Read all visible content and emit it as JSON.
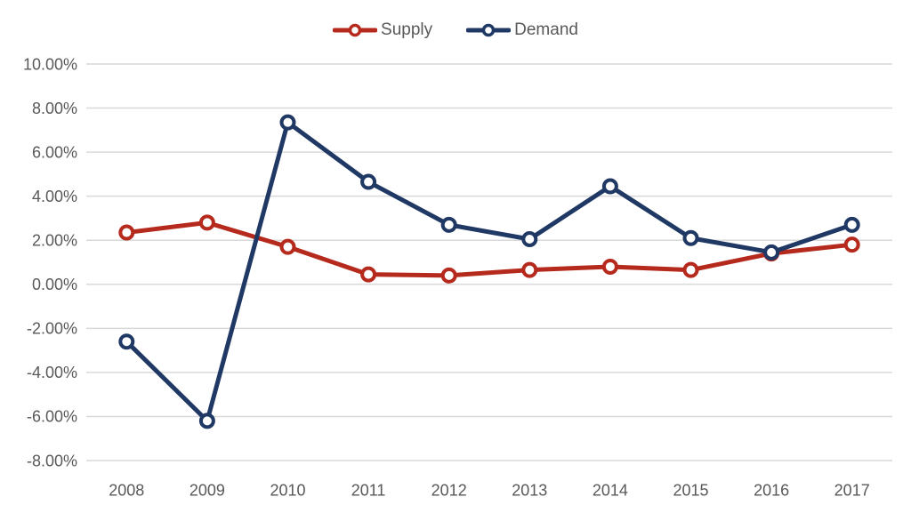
{
  "chart_data": {
    "type": "line",
    "title": "",
    "categories": [
      "2008",
      "2009",
      "2010",
      "2011",
      "2012",
      "2013",
      "2014",
      "2015",
      "2016",
      "2017"
    ],
    "series": [
      {
        "name": "Supply",
        "color": "#b52a1d",
        "marker": "circle-open",
        "values": [
          2.35,
          2.8,
          1.7,
          0.45,
          0.4,
          0.65,
          0.8,
          0.65,
          1.4,
          1.8
        ]
      },
      {
        "name": "Demand",
        "color": "#1f3864",
        "marker": "circle-open",
        "values": [
          -2.6,
          -6.2,
          7.35,
          4.65,
          2.7,
          2.05,
          4.45,
          2.1,
          1.45,
          2.7
        ]
      }
    ],
    "y_axis": {
      "min": -8,
      "max": 10,
      "step": 2,
      "tick_labels": [
        "10.00%",
        "8.00%",
        "6.00%",
        "4.00%",
        "2.00%",
        "0.00%",
        "-2.00%",
        "-4.00%",
        "-6.00%",
        "-8.00%"
      ],
      "grid": true
    },
    "x_axis": {
      "labels": [
        "2008",
        "2009",
        "2010",
        "2011",
        "2012",
        "2013",
        "2014",
        "2015",
        "2016",
        "2017"
      ]
    },
    "legend": {
      "position": "top",
      "entries": [
        "Supply",
        "Demand"
      ]
    },
    "style": {
      "axis_text_color": "#595959",
      "gridline_color": "#d9d9d9",
      "background_color": "#ffffff"
    }
  }
}
